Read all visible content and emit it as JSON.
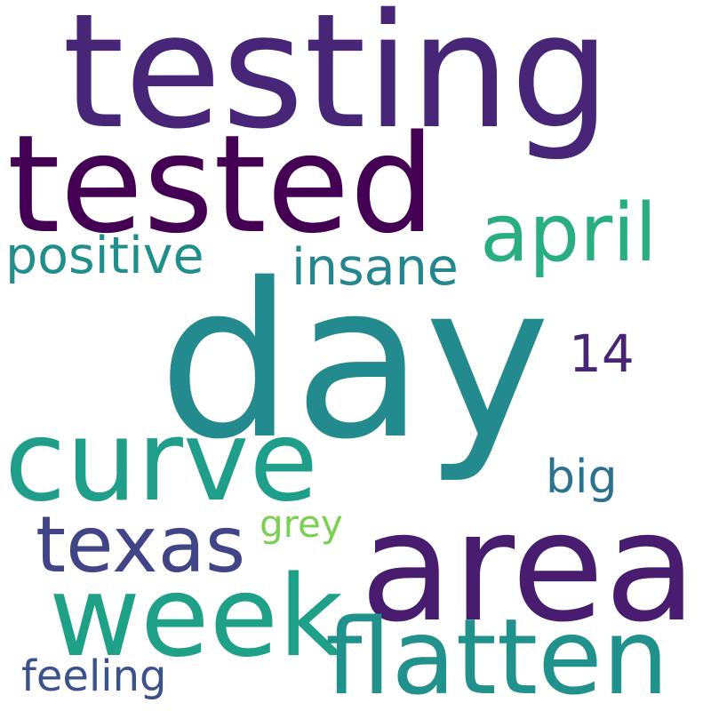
{
  "words": [
    {
      "text": "testing",
      "color": "#482677"
    },
    {
      "text": "tested",
      "color": "#440154"
    },
    {
      "text": "day",
      "color": "#238a8d"
    },
    {
      "text": "april",
      "color": "#29af7f"
    },
    {
      "text": "positive",
      "color": "#208f8c"
    },
    {
      "text": "insane",
      "color": "#24868e"
    },
    {
      "text": "14",
      "color": "#482475"
    },
    {
      "text": "curve",
      "color": "#1f9e89"
    },
    {
      "text": "big",
      "color": "#2c728e"
    },
    {
      "text": "texas",
      "color": "#414487"
    },
    {
      "text": "grey",
      "color": "#7ad151"
    },
    {
      "text": "area",
      "color": "#481c6e"
    },
    {
      "text": "week",
      "color": "#1fa187"
    },
    {
      "text": "flatten",
      "color": "#21918c"
    },
    {
      "text": "feeling",
      "color": "#3b528b"
    }
  ]
}
